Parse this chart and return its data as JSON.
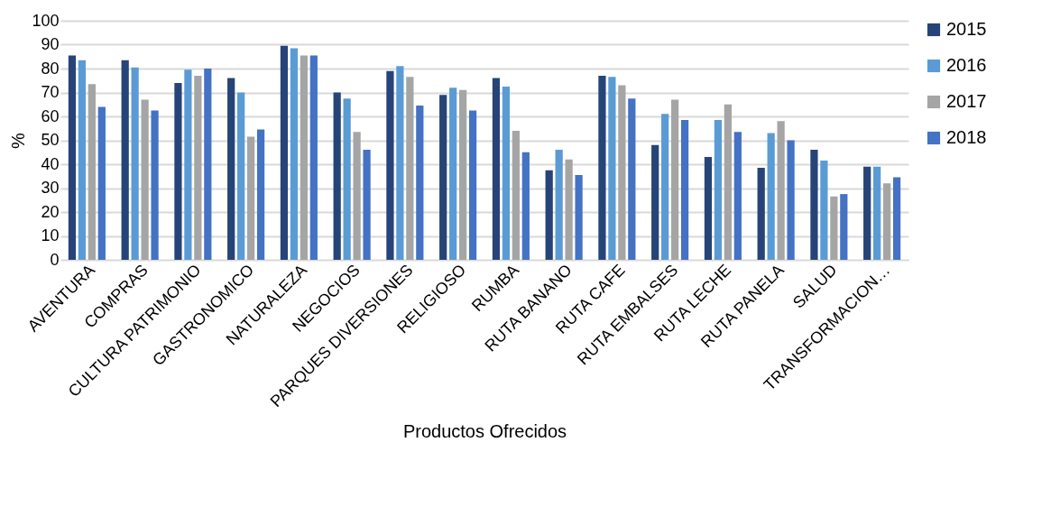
{
  "chart_data": {
    "type": "bar",
    "xlabel": "Productos Ofrecidos",
    "ylabel": "%",
    "categories": [
      "AVENTURA",
      "COMPRAS",
      "CULTURA PATRIMONIO",
      "GASTRONOMICO",
      "NATURALEZA",
      "NEGOCIOS",
      "PARQUES DIVERSIONES",
      "RELIGIOSO",
      "RUMBA",
      "RUTA BANANO",
      "RUTA CAFE",
      "RUTA EMBALSES",
      "RUTA LECHE",
      "RUTA PANELA",
      "SALUD",
      "TRANSFORMACION…"
    ],
    "series": [
      {
        "name": "2015",
        "color": "#264478",
        "values": [
          85.5,
          83.5,
          74,
          76,
          89.5,
          70,
          79,
          69,
          76,
          37.5,
          77,
          48,
          43,
          38.5,
          46,
          39
        ]
      },
      {
        "name": "2016",
        "color": "#5b9bd5",
        "values": [
          83.5,
          80.5,
          79.5,
          70,
          88.5,
          67.5,
          81,
          72,
          72.5,
          46,
          76.5,
          61,
          58.5,
          53,
          41.5,
          39
        ]
      },
      {
        "name": "2017",
        "color": "#a5a5a5",
        "values": [
          73.5,
          67,
          77,
          51.5,
          85.5,
          53.5,
          76.5,
          71,
          54,
          42,
          73,
          67,
          65,
          58,
          26.5,
          32
        ]
      },
      {
        "name": "2018",
        "color": "#4472c4",
        "values": [
          64,
          62.5,
          80,
          54.5,
          85.5,
          46,
          64.5,
          62.5,
          45,
          35.5,
          67.5,
          58.5,
          53.5,
          50,
          27.5,
          34.5
        ]
      }
    ],
    "ylim": [
      0,
      100
    ],
    "yticks": [
      0,
      10,
      20,
      30,
      40,
      50,
      60,
      70,
      80,
      90,
      100
    ],
    "grid": "y",
    "legend": "right"
  }
}
